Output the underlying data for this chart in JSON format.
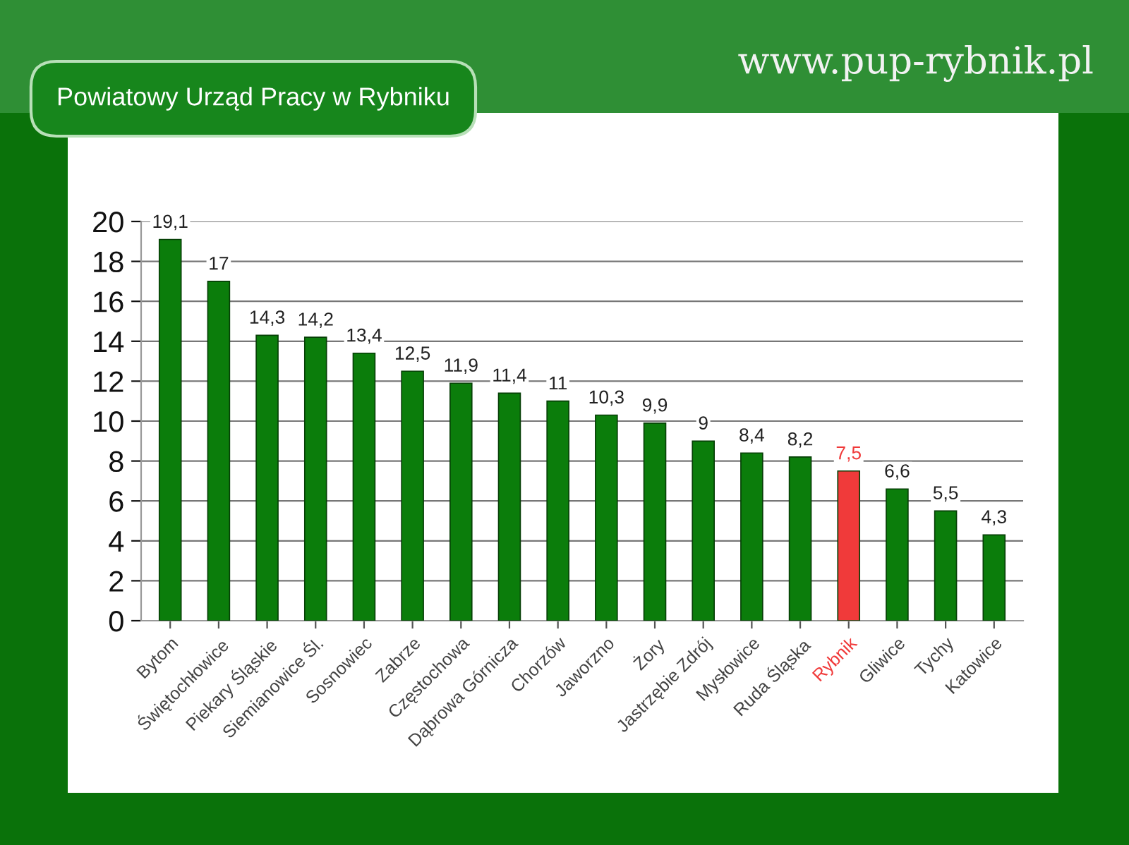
{
  "chart_data": {
    "type": "bar",
    "title": "Powiatowy Urząd Pracy w Rybniku",
    "annotations": [
      "www.pup-rybnik.pl"
    ],
    "categories": [
      "Bytom",
      "Świętochłowice",
      "Piekary Śląskie",
      "Siemianowice Śl.",
      "Sosnowiec",
      "Zabrze",
      "Częstochowa",
      "Dąbrowa Górnicza",
      "Chorzów",
      "Jaworzno",
      "Żory",
      "Jastrzębie Zdrój",
      "Mysłowice",
      "Ruda Śląska",
      "Rybnik",
      "Gliwice",
      "Tychy",
      "Katowice"
    ],
    "values": [
      19.1,
      17,
      14.3,
      14.2,
      13.4,
      12.5,
      11.9,
      11.4,
      11,
      10.3,
      9.9,
      9,
      8.4,
      8.2,
      7.5,
      6.6,
      5.5,
      4.3
    ],
    "colors": [
      "#0b7d0b",
      "#0b7d0b",
      "#0b7d0b",
      "#0b7d0b",
      "#0b7d0b",
      "#0b7d0b",
      "#0b7d0b",
      "#0b7d0b",
      "#0b7d0b",
      "#0b7d0b",
      "#0b7d0b",
      "#0b7d0b",
      "#0b7d0b",
      "#0b7d0b",
      "#f03a3a",
      "#0b7d0b",
      "#0b7d0b",
      "#0b7d0b"
    ],
    "value_labels": [
      "19,1",
      "17",
      "14,3",
      "14,2",
      "13,4",
      "12,5",
      "11,9",
      "11,4",
      "11",
      "10,3",
      "9,9",
      "9",
      "8,4",
      "8,2",
      "7,5",
      "6,6",
      "5,5",
      "4,3"
    ],
    "ylim": [
      0,
      20
    ],
    "yticks": [
      0,
      2,
      4,
      6,
      8,
      10,
      12,
      14,
      16,
      18,
      20
    ],
    "grid": "y",
    "legend": false
  }
}
